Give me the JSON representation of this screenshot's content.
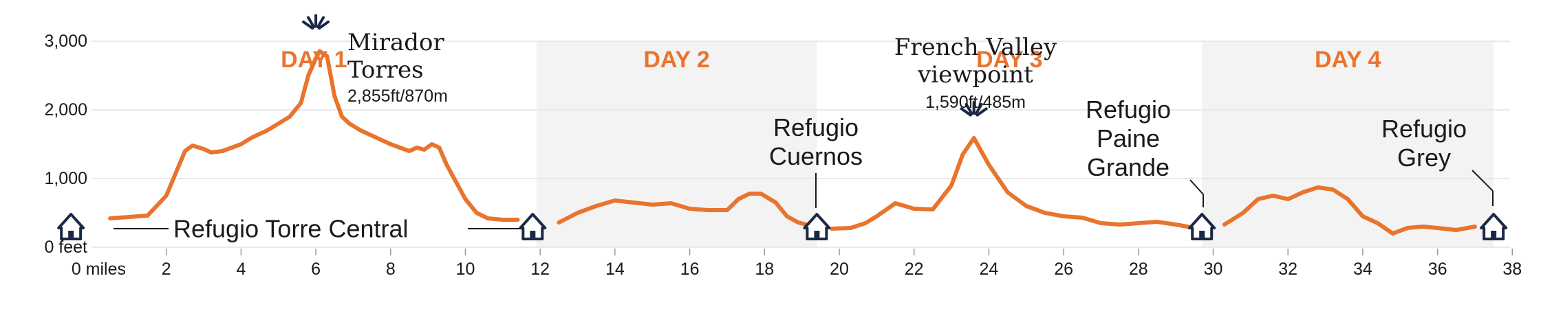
{
  "chart_data": {
    "type": "area",
    "y_unit_label": "0 feet",
    "x_unit_label": "0 miles",
    "xlim": [
      0,
      38
    ],
    "ylim": [
      0,
      3000
    ],
    "x_ticks": [
      {
        "value": 0,
        "label": "0 miles"
      },
      {
        "value": 2,
        "label": "2"
      },
      {
        "value": 4,
        "label": "4"
      },
      {
        "value": 6,
        "label": "6"
      },
      {
        "value": 8,
        "label": "8"
      },
      {
        "value": 10,
        "label": "10"
      },
      {
        "value": 12,
        "label": "12"
      },
      {
        "value": 14,
        "label": "14"
      },
      {
        "value": 16,
        "label": "16"
      },
      {
        "value": 18,
        "label": "18"
      },
      {
        "value": 20,
        "label": "20"
      },
      {
        "value": 22,
        "label": "22"
      },
      {
        "value": 24,
        "label": "24"
      },
      {
        "value": 26,
        "label": "26"
      },
      {
        "value": 28,
        "label": "28"
      },
      {
        "value": 30,
        "label": "30"
      },
      {
        "value": 32,
        "label": "32"
      },
      {
        "value": 34,
        "label": "34"
      },
      {
        "value": 36,
        "label": "36"
      },
      {
        "value": 38,
        "label": "38"
      }
    ],
    "y_ticks": [
      {
        "value": 0,
        "label": "0 feet"
      },
      {
        "value": 1000,
        "label": "1,000"
      },
      {
        "value": 2000,
        "label": "2,000"
      },
      {
        "value": 3000,
        "label": "3,000"
      }
    ],
    "grid": true,
    "days": [
      {
        "label": "DAY 1",
        "start": 0,
        "end": 11.9,
        "shaded": false
      },
      {
        "label": "DAY 2",
        "start": 11.9,
        "end": 19.4,
        "shaded": true
      },
      {
        "label": "DAY 3",
        "start": 19.4,
        "end": 29.7,
        "shaded": false
      },
      {
        "label": "DAY 4",
        "start": 29.7,
        "end": 37.5,
        "shaded": true
      }
    ],
    "series": [
      {
        "color": "#e8742e",
        "segments": [
          {
            "x": [
              0.5,
              1.0,
              1.5,
              2.0,
              2.5,
              2.7,
              3.0,
              3.2,
              3.5,
              4.0,
              4.3,
              4.7,
              5.0,
              5.3,
              5.6,
              5.8,
              6.0,
              6.1,
              6.3,
              6.5,
              6.7,
              6.9,
              7.2,
              7.6,
              8.0,
              8.5,
              8.7,
              8.9,
              9.1,
              9.3,
              9.5,
              10.0,
              10.3,
              10.6,
              11.0,
              11.4
            ],
            "y": [
              420,
              440,
              460,
              750,
              1400,
              1480,
              1430,
              1380,
              1400,
              1500,
              1600,
              1700,
              1800,
              1900,
              2100,
              2500,
              2750,
              2855,
              2780,
              2200,
              1900,
              1800,
              1700,
              1600,
              1500,
              1400,
              1450,
              1420,
              1500,
              1450,
              1200,
              700,
              500,
              420,
              400,
              400
            ]
          },
          {
            "x": [
              12.5,
              13.0,
              13.5,
              14.0,
              14.5,
              15.0,
              15.5,
              16.0,
              16.5,
              17.0,
              17.3,
              17.6,
              17.9,
              18.3,
              18.6,
              18.9,
              19.2
            ],
            "y": [
              360,
              500,
              600,
              680,
              650,
              620,
              640,
              560,
              540,
              540,
              700,
              780,
              780,
              650,
              450,
              360,
              320
            ]
          },
          {
            "x": [
              19.8,
              20.3,
              20.7,
              21.0,
              21.5,
              22.0,
              22.5,
              23.0,
              23.3,
              23.6,
              24.0,
              24.5,
              25.0,
              25.5,
              26.0,
              26.5,
              27.0,
              27.5,
              28.0,
              28.5,
              29.0,
              29.4
            ],
            "y": [
              270,
              280,
              350,
              450,
              640,
              560,
              550,
              900,
              1350,
              1590,
              1200,
              800,
              600,
              500,
              450,
              430,
              350,
              330,
              350,
              370,
              330,
              290
            ]
          },
          {
            "x": [
              30.3,
              30.8,
              31.2,
              31.6,
              32.0,
              32.4,
              32.8,
              33.2,
              33.6,
              34.0,
              34.4,
              34.8,
              35.2,
              35.6,
              36.0,
              36.5,
              37.0
            ],
            "y": [
              330,
              500,
              700,
              750,
              700,
              800,
              870,
              840,
              700,
              450,
              350,
              200,
              280,
              300,
              280,
              250,
              300
            ]
          }
        ]
      }
    ],
    "peaks": [
      {
        "name": "Mirador Torres",
        "elevation_text": "2,855ft/870m",
        "x": 6.0,
        "y": 2855
      },
      {
        "name": "French Valley viewpoint",
        "elevation_text": "1,590ft/485m",
        "x": 23.6,
        "y": 1590
      }
    ],
    "huts": [
      {
        "label": "Refugio Torre Central",
        "x": 0.5
      },
      {
        "label": "Refugio Torre Central",
        "x": 11.8
      },
      {
        "label": "Refugio Cuernos",
        "x": 19.4
      },
      {
        "label": "Refugio Paine Grande",
        "x": 29.7
      },
      {
        "label": "Refugio Grey",
        "x": 37.5
      }
    ],
    "colors": {
      "line": "#e8742e",
      "day_label": "#e8742e",
      "shade": "#f3f3f3",
      "grid": "#e4e4e4",
      "icon": "#1b2845",
      "text": "#1a1a1a"
    }
  },
  "labels": {
    "peak1_line1": "Mirador",
    "peak1_line2": "Torres",
    "peak1_elev": "2,855ft/870m",
    "peak2_line1": "French Valley",
    "peak2_line2": "viewpoint",
    "peak2_elev": "1,590ft/485m",
    "hut_torre_central": "Refugio Torre Central",
    "hut_cuernos_line1": "Refugio",
    "hut_cuernos_line2": "Cuernos",
    "hut_paine_line1": "Refugio",
    "hut_paine_line2": "Paine",
    "hut_paine_line3": "Grande",
    "hut_grey_line1": "Refugio",
    "hut_grey_line2": "Grey"
  }
}
